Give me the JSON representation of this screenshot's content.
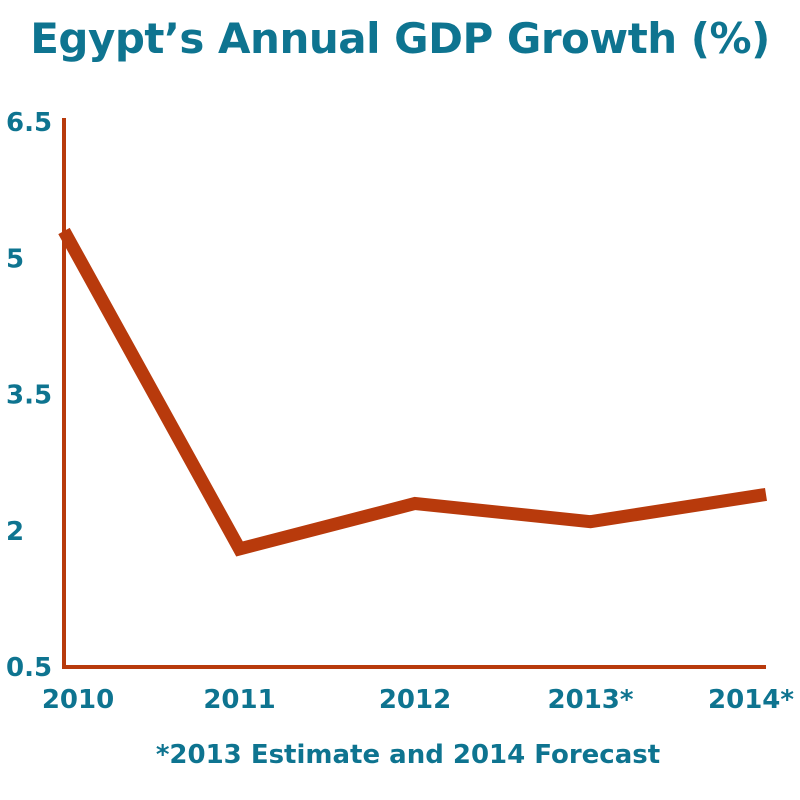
{
  "colors": {
    "text": "#0e7490",
    "line": "#b83a0c",
    "axis": "#b83a0c"
  },
  "chart_data": {
    "type": "line",
    "title": "Egypt’s Annual GDP Growth (%)",
    "footnote": "*2013 Estimate and 2014 Forecast",
    "categories": [
      "2010",
      "2011",
      "2012",
      "2013*",
      "2014*"
    ],
    "series": [
      {
        "name": "GDP Growth (%)",
        "values": [
          5.3,
          1.8,
          2.3,
          2.1,
          2.4
        ]
      }
    ],
    "y_ticks": [
      6.5,
      5,
      3.5,
      2,
      0.5
    ],
    "y_tick_labels": [
      "6.5",
      "5",
      "3.5",
      "2",
      "0.5"
    ],
    "ylim": [
      0.5,
      6.5
    ],
    "xlabel": "",
    "ylabel": "",
    "grid": false,
    "legend": "none"
  }
}
